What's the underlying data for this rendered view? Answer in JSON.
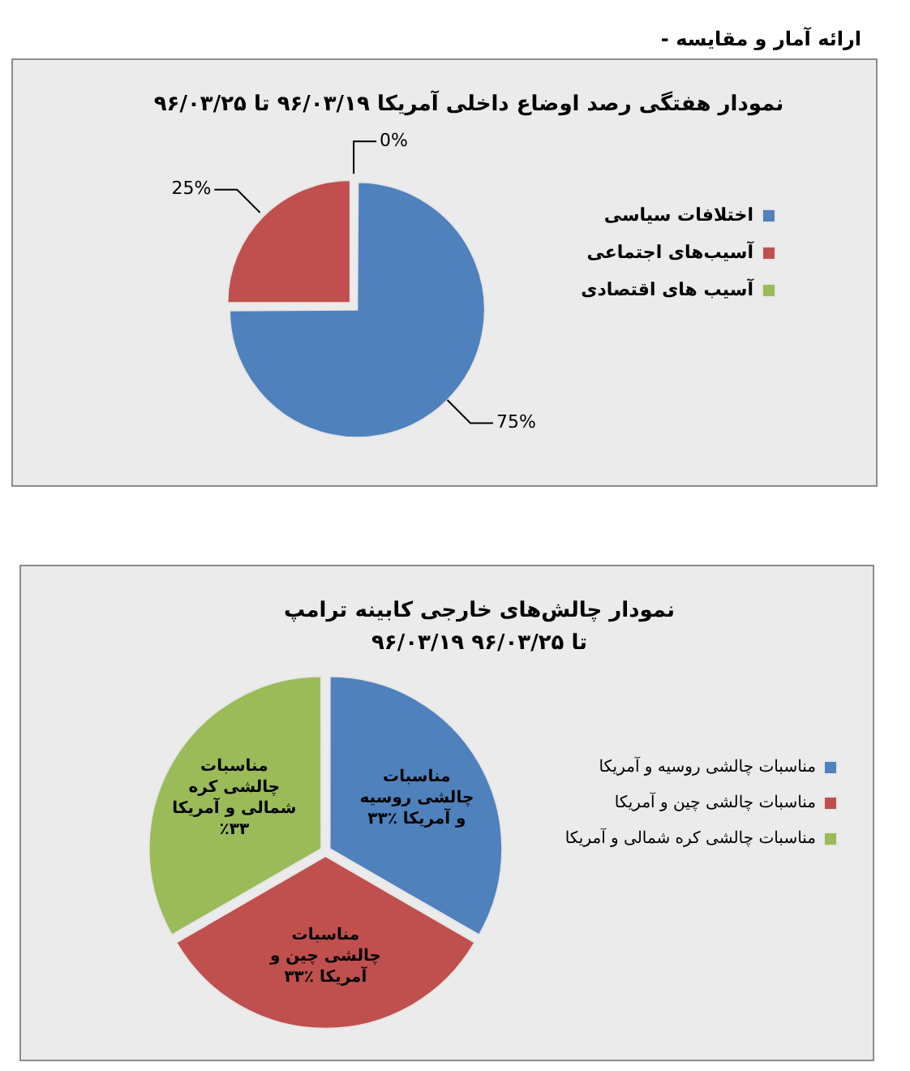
{
  "chart_data": [
    {
      "type": "pie",
      "title": "نمودار هفتگی رصد اوضاع داخلی آمریکا ۹۶/۰۳/۱۹ تا ۹۶/۰۳/۲۵",
      "annotations": [
        "- ارائه آمار و مقایسه"
      ],
      "categories": [
        "اختلافات سیاسی",
        "آسیب‌های اجتماعی",
        "آسیب های اقتصادی"
      ],
      "values": [
        75,
        25,
        0
      ],
      "colors": [
        "#4f81bd",
        "#c0504d",
        "#9bbb59"
      ],
      "value_labels": [
        "75%",
        "25%",
        "0%"
      ],
      "legend": "right"
    },
    {
      "type": "pie",
      "title": "نمودار چالش‌های خارجی کابینه ترامپ",
      "subtitle": "۹۶/۰۳/۱۹ تا ۹۶/۰۳/۲۵",
      "categories": [
        "مناسبات چالشی روسیه و آمریکا",
        "مناسبات چالشی چین و آمریکا",
        "مناسبات چالشی کره شمالی و آمریکا"
      ],
      "values": [
        33,
        33,
        33
      ],
      "colors": [
        "#4f81bd",
        "#c0504d",
        "#9bbb59"
      ],
      "value_labels": [
        "مناسبات چالشی روسیه و آمریکا ٪۳۳",
        "مناسبات چالشی چین و آمریکا ٪۳۳",
        "مناسبات چالشی کره شمالی و آمریکا ٪۳۳"
      ],
      "legend": "right"
    }
  ]
}
